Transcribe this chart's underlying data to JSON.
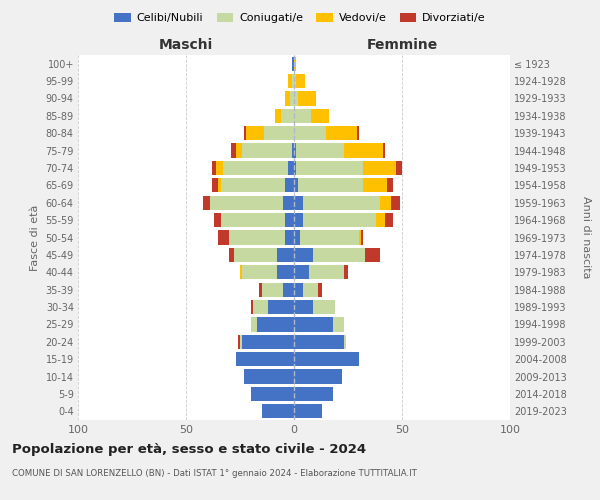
{
  "age_groups": [
    "0-4",
    "5-9",
    "10-14",
    "15-19",
    "20-24",
    "25-29",
    "30-34",
    "35-39",
    "40-44",
    "45-49",
    "50-54",
    "55-59",
    "60-64",
    "65-69",
    "70-74",
    "75-79",
    "80-84",
    "85-89",
    "90-94",
    "95-99",
    "100+"
  ],
  "birth_years": [
    "2019-2023",
    "2014-2018",
    "2009-2013",
    "2004-2008",
    "1999-2003",
    "1994-1998",
    "1989-1993",
    "1984-1988",
    "1979-1983",
    "1974-1978",
    "1969-1973",
    "1964-1968",
    "1959-1963",
    "1954-1958",
    "1949-1953",
    "1944-1948",
    "1939-1943",
    "1934-1938",
    "1929-1933",
    "1924-1928",
    "≤ 1923"
  ],
  "colors": {
    "celibi": "#4472c4",
    "coniugati": "#c5d9a0",
    "vedovi": "#ffc000",
    "divorziati": "#c0392b"
  },
  "maschi": {
    "celibi": [
      15,
      20,
      23,
      27,
      24,
      17,
      12,
      5,
      8,
      8,
      4,
      4,
      5,
      4,
      3,
      1,
      0,
      0,
      0,
      0,
      1
    ],
    "coniugati": [
      0,
      0,
      0,
      0,
      1,
      3,
      7,
      10,
      16,
      20,
      26,
      30,
      34,
      30,
      30,
      23,
      14,
      6,
      2,
      1,
      0
    ],
    "vedovi": [
      0,
      0,
      0,
      0,
      0,
      0,
      0,
      0,
      1,
      0,
      0,
      0,
      0,
      1,
      3,
      3,
      8,
      3,
      2,
      2,
      0
    ],
    "divorziati": [
      0,
      0,
      0,
      0,
      1,
      0,
      1,
      1,
      0,
      2,
      5,
      3,
      3,
      3,
      2,
      2,
      1,
      0,
      0,
      0,
      0
    ]
  },
  "femmine": {
    "celibi": [
      13,
      18,
      22,
      30,
      23,
      18,
      9,
      4,
      7,
      9,
      3,
      4,
      4,
      2,
      1,
      1,
      0,
      0,
      0,
      0,
      0
    ],
    "coniugati": [
      0,
      0,
      0,
      0,
      1,
      5,
      10,
      7,
      16,
      24,
      27,
      34,
      36,
      30,
      31,
      22,
      15,
      8,
      2,
      1,
      0
    ],
    "vedovi": [
      0,
      0,
      0,
      0,
      0,
      0,
      0,
      0,
      0,
      0,
      1,
      4,
      5,
      11,
      15,
      18,
      14,
      8,
      8,
      4,
      1
    ],
    "divorziati": [
      0,
      0,
      0,
      0,
      0,
      0,
      0,
      2,
      2,
      7,
      1,
      4,
      4,
      3,
      3,
      1,
      1,
      0,
      0,
      0,
      0
    ]
  },
  "title": "Popolazione per età, sesso e stato civile - 2024",
  "subtitle": "COMUNE DI SAN LORENZELLO (BN) - Dati ISTAT 1° gennaio 2024 - Elaborazione TUTTITALIA.IT",
  "xlabel_maschi": "Maschi",
  "xlabel_femmine": "Femmine",
  "ylabel": "Fasce di età",
  "ylabel_right": "Anni di nascita",
  "legend": [
    "Celibi/Nubili",
    "Coniugati/e",
    "Vedovi/e",
    "Divorziati/e"
  ],
  "xlim": 100,
  "background_color": "#f0f0f0",
  "plot_background": "#ffffff"
}
